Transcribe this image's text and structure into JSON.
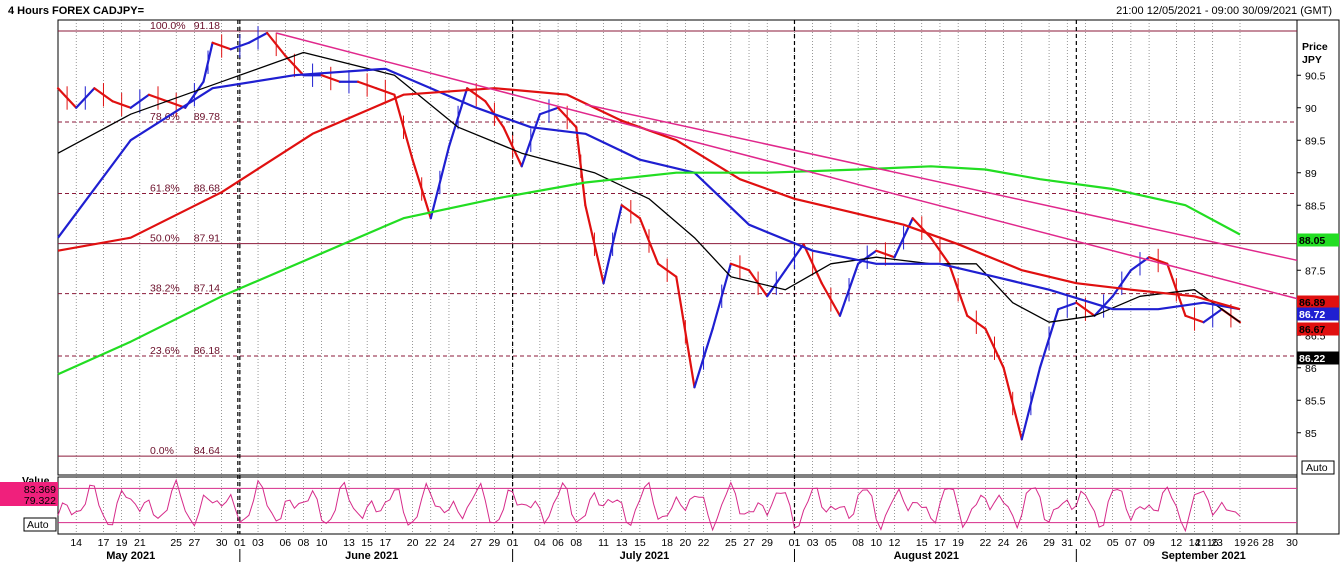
{
  "header": {
    "title": "4 Hours FOREX CADJPY=",
    "range": "21:00 12/05/2021 - 09:00 30/09/2021 (GMT)"
  },
  "chart_data": {
    "type": "candlestick",
    "symbol": "CADJPY=",
    "timeframe": "4 Hours",
    "y_axis_label": [
      "Price",
      "JPY"
    ],
    "ylim": [
      84.35,
      91.35
    ],
    "y_ticks": [
      "90.5",
      "90",
      "89.5",
      "89",
      "88.5",
      "87.5",
      "86.5",
      "86",
      "85.5",
      "85"
    ],
    "x_range_days": [
      12,
      142
    ],
    "months": [
      {
        "label": "May 2021",
        "day": 20
      },
      {
        "label": "June 2021",
        "day": 46.5
      },
      {
        "label": "July 2021",
        "day": 76.5
      },
      {
        "label": "August 2021",
        "day": 107.5
      },
      {
        "label": "September 2021",
        "day": 138
      }
    ],
    "month_starts": [
      32,
      62,
      93,
      124
    ],
    "date_ticks": [
      {
        "label": "14",
        "day": 14
      },
      {
        "label": "17",
        "day": 17
      },
      {
        "label": "19",
        "day": 19
      },
      {
        "label": "21",
        "day": 21
      },
      {
        "label": "25",
        "day": 25
      },
      {
        "label": "27",
        "day": 27
      },
      {
        "label": "30",
        "day": 30
      },
      {
        "label": "01",
        "day": 32
      },
      {
        "label": "03",
        "day": 34
      },
      {
        "label": "06",
        "day": 37
      },
      {
        "label": "08",
        "day": 39
      },
      {
        "label": "10",
        "day": 41
      },
      {
        "label": "13",
        "day": 44
      },
      {
        "label": "15",
        "day": 46
      },
      {
        "label": "17",
        "day": 48
      },
      {
        "label": "20",
        "day": 51
      },
      {
        "label": "22",
        "day": 53
      },
      {
        "label": "24",
        "day": 55
      },
      {
        "label": "27",
        "day": 58
      },
      {
        "label": "29",
        "day": 60
      },
      {
        "label": "01",
        "day": 62
      },
      {
        "label": "04",
        "day": 65
      },
      {
        "label": "06",
        "day": 67
      },
      {
        "label": "08",
        "day": 69
      },
      {
        "label": "11",
        "day": 72
      },
      {
        "label": "13",
        "day": 74
      },
      {
        "label": "15",
        "day": 76
      },
      {
        "label": "18",
        "day": 79
      },
      {
        "label": "20",
        "day": 81
      },
      {
        "label": "22",
        "day": 83
      },
      {
        "label": "25",
        "day": 86
      },
      {
        "label": "27",
        "day": 88
      },
      {
        "label": "29",
        "day": 90
      },
      {
        "label": "01",
        "day": 93
      },
      {
        "label": "03",
        "day": 95
      },
      {
        "label": "05",
        "day": 97
      },
      {
        "label": "08",
        "day": 100
      },
      {
        "label": "10",
        "day": 102
      },
      {
        "label": "12",
        "day": 104
      },
      {
        "label": "15",
        "day": 107
      },
      {
        "label": "17",
        "day": 109
      },
      {
        "label": "19",
        "day": 111
      },
      {
        "label": "22",
        "day": 114
      },
      {
        "label": "24",
        "day": 116
      },
      {
        "label": "26",
        "day": 118
      },
      {
        "label": "29",
        "day": 121
      },
      {
        "label": "31",
        "day": 123
      },
      {
        "label": "02",
        "day": 125
      },
      {
        "label": "05",
        "day": 128
      },
      {
        "label": "07",
        "day": 130
      },
      {
        "label": "09",
        "day": 132
      },
      {
        "label": "12",
        "day": 135
      },
      {
        "label": "14",
        "day": 137
      },
      {
        "label": "16",
        "day": 139
      },
      {
        "label": "19",
        "day": 142
      }
    ],
    "right_date_ticks": [
      "21",
      "23",
      "26",
      "28",
      "30"
    ],
    "fibonacci": [
      {
        "label": "100.0%",
        "value": 91.18,
        "value_text": "91.18"
      },
      {
        "label": "78.6%",
        "value": 89.78,
        "value_text": "89.78"
      },
      {
        "label": "61.8%",
        "value": 88.68,
        "value_text": "88.68"
      },
      {
        "label": "50.0%",
        "value": 87.91,
        "value_text": "87.91"
      },
      {
        "label": "38.2%",
        "value": 87.14,
        "value_text": "87.14"
      },
      {
        "label": "23.6%",
        "value": 86.18,
        "value_text": "86.18"
      },
      {
        "label": "0.0%",
        "value": 84.64,
        "value_text": "84.64"
      }
    ],
    "price_series": [
      {
        "day": 12,
        "value": 90.3
      },
      {
        "day": 14,
        "value": 90.0
      },
      {
        "day": 16,
        "value": 90.3
      },
      {
        "day": 18,
        "value": 90.1
      },
      {
        "day": 20,
        "value": 90.0
      },
      {
        "day": 22,
        "value": 90.2
      },
      {
        "day": 24,
        "value": 90.1
      },
      {
        "day": 26,
        "value": 90.0
      },
      {
        "day": 28,
        "value": 90.4
      },
      {
        "day": 29,
        "value": 91.0
      },
      {
        "day": 31,
        "value": 90.9
      },
      {
        "day": 33,
        "value": 91.0
      },
      {
        "day": 35,
        "value": 91.15
      },
      {
        "day": 37,
        "value": 90.8
      },
      {
        "day": 39,
        "value": 90.5
      },
      {
        "day": 41,
        "value": 90.5
      },
      {
        "day": 43,
        "value": 90.4
      },
      {
        "day": 45,
        "value": 90.4
      },
      {
        "day": 47,
        "value": 90.3
      },
      {
        "day": 49,
        "value": 90.2
      },
      {
        "day": 51,
        "value": 89.2
      },
      {
        "day": 53,
        "value": 88.3
      },
      {
        "day": 55,
        "value": 89.4
      },
      {
        "day": 57,
        "value": 90.3
      },
      {
        "day": 59,
        "value": 90.1
      },
      {
        "day": 61,
        "value": 89.7
      },
      {
        "day": 63,
        "value": 89.1
      },
      {
        "day": 65,
        "value": 89.9
      },
      {
        "day": 67,
        "value": 90.0
      },
      {
        "day": 69,
        "value": 89.7
      },
      {
        "day": 70,
        "value": 88.5
      },
      {
        "day": 72,
        "value": 87.3
      },
      {
        "day": 74,
        "value": 88.5
      },
      {
        "day": 76,
        "value": 88.3
      },
      {
        "day": 78,
        "value": 87.6
      },
      {
        "day": 80,
        "value": 87.4
      },
      {
        "day": 82,
        "value": 85.7
      },
      {
        "day": 84,
        "value": 86.6
      },
      {
        "day": 86,
        "value": 87.6
      },
      {
        "day": 88,
        "value": 87.5
      },
      {
        "day": 90,
        "value": 87.1
      },
      {
        "day": 92,
        "value": 87.5
      },
      {
        "day": 94,
        "value": 87.9
      },
      {
        "day": 96,
        "value": 87.3
      },
      {
        "day": 98,
        "value": 86.8
      },
      {
        "day": 100,
        "value": 87.6
      },
      {
        "day": 102,
        "value": 87.8
      },
      {
        "day": 104,
        "value": 87.7
      },
      {
        "day": 106,
        "value": 88.3
      },
      {
        "day": 108,
        "value": 88.0
      },
      {
        "day": 110,
        "value": 87.6
      },
      {
        "day": 112,
        "value": 86.8
      },
      {
        "day": 114,
        "value": 86.6
      },
      {
        "day": 116,
        "value": 86.0
      },
      {
        "day": 118,
        "value": 84.9
      },
      {
        "day": 120,
        "value": 86.0
      },
      {
        "day": 122,
        "value": 86.9
      },
      {
        "day": 124,
        "value": 87.0
      },
      {
        "day": 126,
        "value": 86.8
      },
      {
        "day": 128,
        "value": 87.1
      },
      {
        "day": 130,
        "value": 87.5
      },
      {
        "day": 132,
        "value": 87.7
      },
      {
        "day": 134,
        "value": 87.6
      },
      {
        "day": 136,
        "value": 86.8
      },
      {
        "day": 138,
        "value": 86.7
      },
      {
        "day": 140,
        "value": 86.9
      },
      {
        "day": 142,
        "value": 86.7
      }
    ],
    "moving_averages": [
      {
        "name": "",
        "color": "#000000",
        "points": [
          [
            12,
            89.3
          ],
          [
            20,
            89.9
          ],
          [
            30,
            90.4
          ],
          [
            39,
            90.85
          ],
          [
            49,
            90.5
          ],
          [
            56,
            89.7
          ],
          [
            63,
            89.3
          ],
          [
            71,
            89.0
          ],
          [
            77,
            88.6
          ],
          [
            82,
            88.0
          ],
          [
            86,
            87.4
          ],
          [
            92,
            87.2
          ],
          [
            97,
            87.6
          ],
          [
            102,
            87.7
          ],
          [
            108,
            87.6
          ],
          [
            113,
            87.6
          ],
          [
            117,
            87.0
          ],
          [
            121,
            86.7
          ],
          [
            126,
            86.8
          ],
          [
            131,
            87.1
          ],
          [
            137,
            87.2
          ],
          [
            142,
            86.7
          ]
        ]
      },
      {
        "name": "",
        "color": "#1f1fd1",
        "points": [
          [
            12,
            88.0
          ],
          [
            20,
            89.5
          ],
          [
            29,
            90.3
          ],
          [
            38,
            90.5
          ],
          [
            48,
            90.6
          ],
          [
            58,
            90.0
          ],
          [
            64,
            89.7
          ],
          [
            70,
            89.6
          ],
          [
            76,
            89.2
          ],
          [
            82,
            89.0
          ],
          [
            88,
            88.2
          ],
          [
            95,
            87.8
          ],
          [
            102,
            87.6
          ],
          [
            109,
            87.6
          ],
          [
            115,
            87.4
          ],
          [
            121,
            87.2
          ],
          [
            128,
            86.9
          ],
          [
            133,
            86.9
          ],
          [
            138,
            87.0
          ],
          [
            142,
            86.9
          ]
        ]
      },
      {
        "name": "",
        "color": "#e01010",
        "points": [
          [
            12,
            87.8
          ],
          [
            20,
            88.0
          ],
          [
            30,
            88.7
          ],
          [
            40,
            89.6
          ],
          [
            50,
            90.2
          ],
          [
            60,
            90.3
          ],
          [
            68,
            90.2
          ],
          [
            74,
            89.8
          ],
          [
            80,
            89.5
          ],
          [
            87,
            88.9
          ],
          [
            93,
            88.6
          ],
          [
            99,
            88.4
          ],
          [
            105,
            88.2
          ],
          [
            111,
            87.9
          ],
          [
            118,
            87.5
          ],
          [
            124,
            87.3
          ],
          [
            130,
            87.2
          ],
          [
            137,
            87.1
          ],
          [
            142,
            86.9
          ]
        ]
      },
      {
        "name": "",
        "color": "#22dd22",
        "points": [
          [
            12,
            85.9
          ],
          [
            20,
            86.4
          ],
          [
            30,
            87.1
          ],
          [
            40,
            87.7
          ],
          [
            50,
            88.3
          ],
          [
            60,
            88.6
          ],
          [
            70,
            88.85
          ],
          [
            80,
            89.0
          ],
          [
            90,
            89.0
          ],
          [
            100,
            89.05
          ],
          [
            108,
            89.1
          ],
          [
            114,
            89.05
          ],
          [
            120,
            88.9
          ],
          [
            128,
            88.75
          ],
          [
            136,
            88.5
          ],
          [
            142,
            88.05
          ]
        ]
      }
    ],
    "trendlines": [
      {
        "color": "#e0288c",
        "points": [
          [
            36,
            91.15
          ],
          [
            150,
            87.0
          ]
        ]
      },
      {
        "color": "#e0288c",
        "points": [
          [
            70,
            90.05
          ],
          [
            150,
            87.6
          ]
        ]
      }
    ],
    "price_tags": [
      {
        "text": "88.05",
        "bg": "#22dd22",
        "fg": "#000000",
        "value": 88.05
      },
      {
        "text": "86.89",
        "bg": "#e01010",
        "fg": "#000000",
        "value": 86.89
      },
      {
        "text": "86.72",
        "bg": "#1f1fd1",
        "fg": "#ffffff",
        "value": 86.72
      },
      {
        "text": "86.67",
        "bg": "#e01010",
        "fg": "#000000",
        "value": 86.67
      },
      {
        "text": "86.22",
        "bg": "#000000",
        "fg": "#ffffff",
        "value": 86.22
      }
    ],
    "auto_label": "Auto",
    "oscillator": {
      "label": "Value",
      "values": [
        "83.369",
        "79.322"
      ],
      "auto_label": "Auto",
      "bands": [
        80,
        20
      ],
      "color": "#d62b8a"
    }
  }
}
